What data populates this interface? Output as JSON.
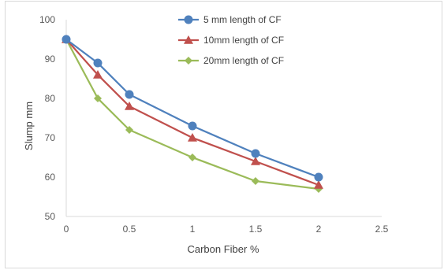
{
  "chart_data": {
    "type": "line",
    "title": "",
    "xlabel": "Carbon Fiber %",
    "ylabel": "Slump mm",
    "xlim": [
      0,
      2.5
    ],
    "ylim": [
      50,
      100
    ],
    "x_ticks": [
      "0",
      "0.5",
      "1",
      "1.5",
      "2",
      "2.5"
    ],
    "y_ticks": [
      "50",
      "60",
      "70",
      "80",
      "90",
      "100"
    ],
    "grid": false,
    "legend_position": "top-right",
    "x": [
      0,
      0.25,
      0.5,
      1,
      1.5,
      2
    ],
    "series": [
      {
        "name": "5 mm length of CF",
        "color": "#4f81bd",
        "marker": "circle",
        "values": [
          95,
          89,
          81,
          73,
          66,
          60
        ]
      },
      {
        "name": "10mm length of CF",
        "color": "#c0504d",
        "marker": "triangle",
        "values": [
          95,
          86,
          78,
          70,
          64,
          58
        ]
      },
      {
        "name": "20mm length of CF",
        "color": "#9bbb59",
        "marker": "diamond",
        "values": [
          95,
          80,
          72,
          65,
          59,
          57
        ]
      }
    ]
  }
}
